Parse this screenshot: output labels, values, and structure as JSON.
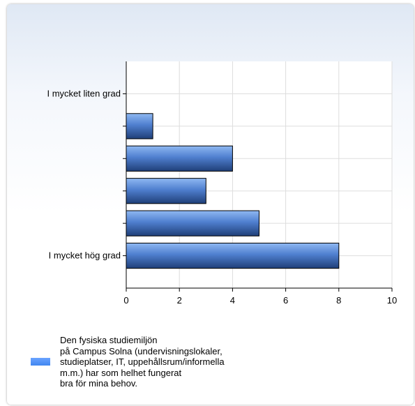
{
  "chart_data": {
    "type": "bar",
    "orientation": "horizontal",
    "categories": [
      "I mycket liten grad",
      "",
      "",
      "",
      "",
      "I mycket hög grad"
    ],
    "series": [
      {
        "name": "Den fysiska studiemiljön\npå Campus Solna (undervisningslokaler,\nstudieplatser, IT, uppehållsrum/informella\nm.m.) har som helhet fungerat\nbra för mina behov.",
        "values": [
          0,
          1,
          4,
          3,
          5,
          8
        ]
      }
    ],
    "xlim": [
      0,
      10
    ],
    "xticks": [
      0,
      2,
      4,
      6,
      8,
      10
    ],
    "grid": true,
    "legend_position": "bottom-left",
    "bar_color": "#4a88e8"
  }
}
